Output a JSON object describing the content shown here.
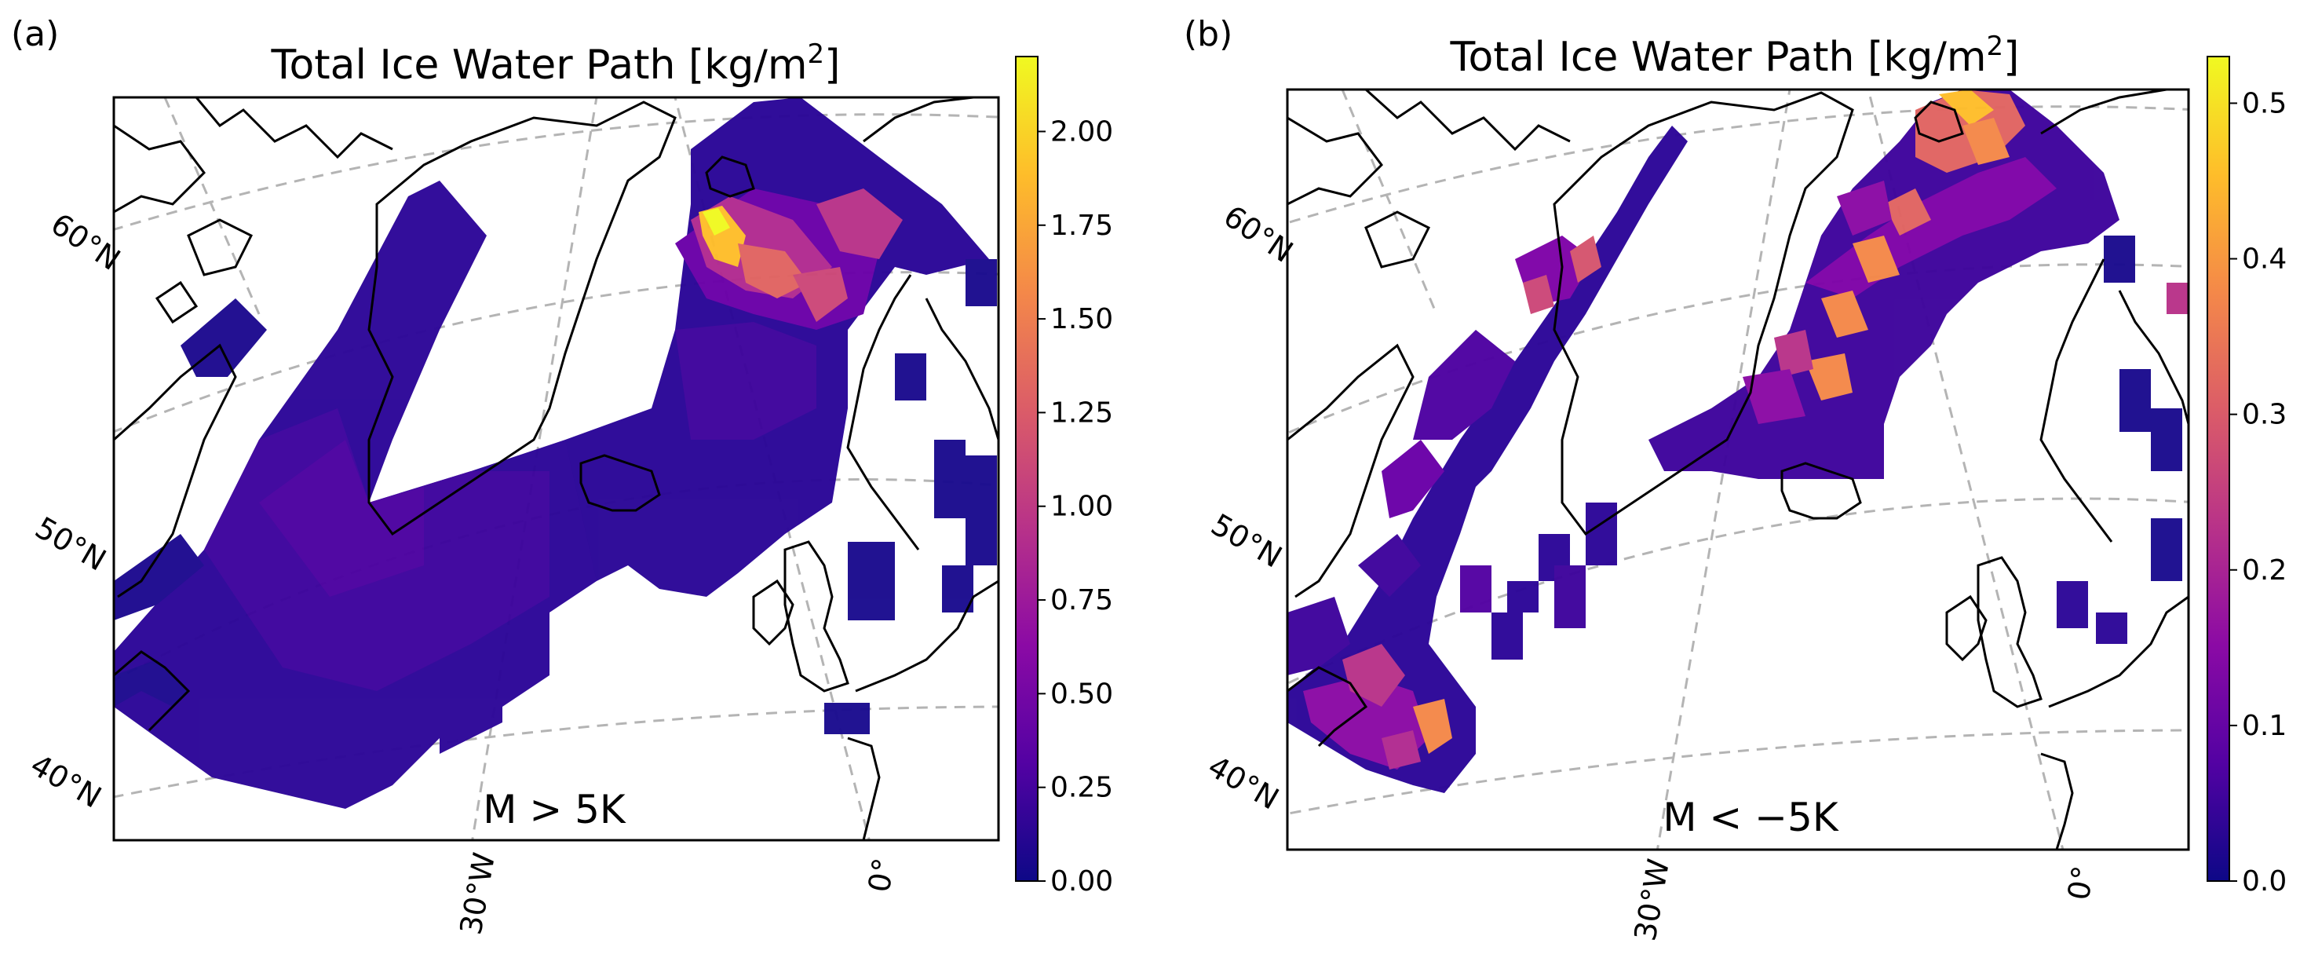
{
  "panels": [
    {
      "label": "(a)",
      "title": "Total Ice Water Path [kg/m",
      "title_sup": "2",
      "title_end": "]",
      "annotation": "M > 5K",
      "lat_labels": [
        "60°N",
        "50°N",
        "40°N"
      ],
      "lon_labels": [
        "30°W",
        "0°"
      ],
      "colorbar": {
        "colormap": "plasma",
        "min": 0.0,
        "max": 2.2,
        "ticks": [
          0.0,
          0.25,
          0.5,
          0.75,
          1.0,
          1.25,
          1.5,
          1.75,
          2.0
        ],
        "tick_labels": [
          "0.00",
          "0.25",
          "0.50",
          "0.75",
          "1.00",
          "1.25",
          "1.50",
          "1.75",
          "2.00"
        ]
      }
    },
    {
      "label": "(b)",
      "title": "Total Ice Water Path [kg/m",
      "title_sup": "2",
      "title_end": "]",
      "annotation": "M < −5K",
      "lat_labels": [
        "60°N",
        "50°N",
        "40°N"
      ],
      "lon_labels": [
        "30°W",
        "0°"
      ],
      "colorbar": {
        "colormap": "plasma",
        "min": 0.0,
        "max": 0.53,
        "ticks": [
          0.0,
          0.1,
          0.2,
          0.3,
          0.4,
          0.5
        ],
        "tick_labels": [
          "0.0",
          "0.1",
          "0.2",
          "0.3",
          "0.4",
          "0.5"
        ]
      }
    }
  ],
  "colors": {
    "plasma": [
      "#0d0887",
      "#5302a3",
      "#8b0aa5",
      "#b83289",
      "#db5c68",
      "#f48849",
      "#febd2a",
      "#f0f921"
    ],
    "coast": "#000000",
    "grid": "#b4b4b4"
  }
}
